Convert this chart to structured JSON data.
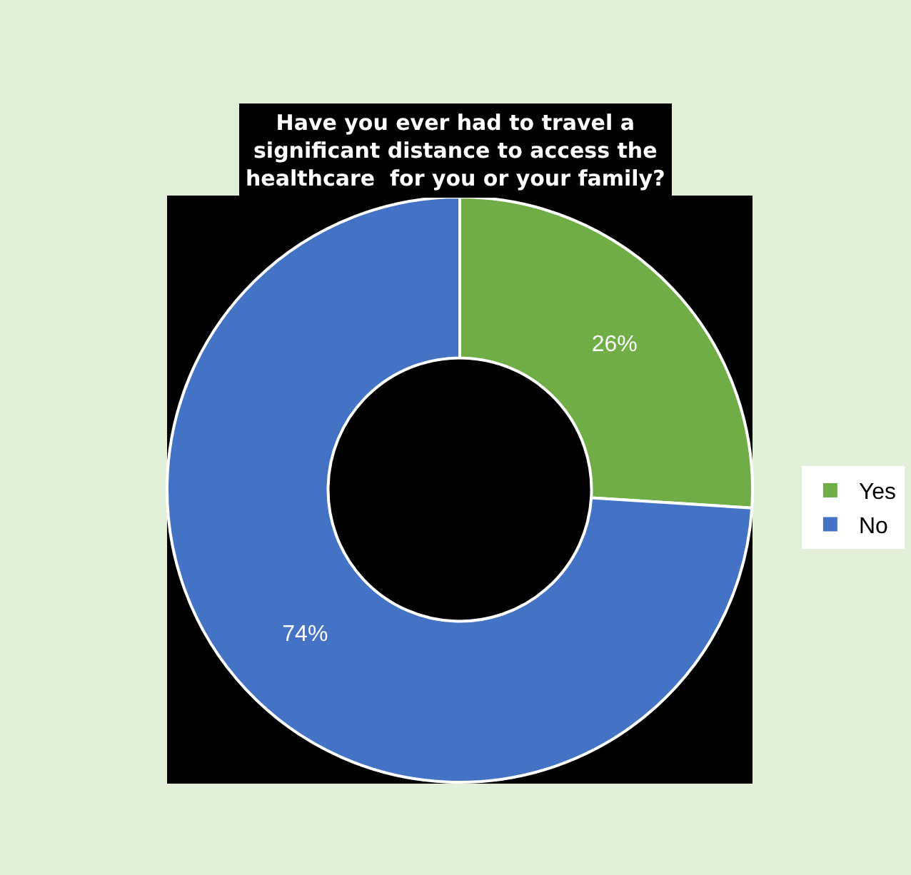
{
  "chart_data": {
    "type": "donut",
    "title": "Have you ever had to travel a significant distance to access the healthcare  for you or your family?",
    "categories": [
      "Yes",
      "No"
    ],
    "values": [
      26,
      74
    ],
    "colors": [
      "#70ad47",
      "#4472c4"
    ],
    "value_labels": [
      "26%",
      "74%"
    ],
    "legend": "right"
  }
}
